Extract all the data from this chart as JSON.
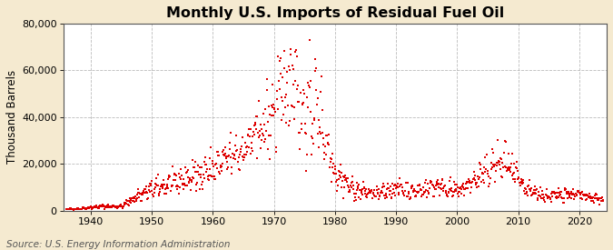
{
  "title": "Monthly U.S. Imports of Residual Fuel Oil",
  "ylabel": "Thousand Barrels",
  "source": "Source: U.S. Energy Information Administration",
  "bg_color": "#f5ead0",
  "plot_bg": "#ffffff",
  "marker_color": "#dd0000",
  "xlim": [
    1935.5,
    2024.5
  ],
  "ylim": [
    0,
    80000
  ],
  "yticks": [
    0,
    20000,
    40000,
    60000,
    80000
  ],
  "xticks": [
    1940,
    1950,
    1960,
    1970,
    1980,
    1990,
    2000,
    2010,
    2020
  ],
  "title_fontsize": 11.5,
  "ylabel_fontsize": 8.5,
  "tick_fontsize": 8,
  "source_fontsize": 7.5
}
